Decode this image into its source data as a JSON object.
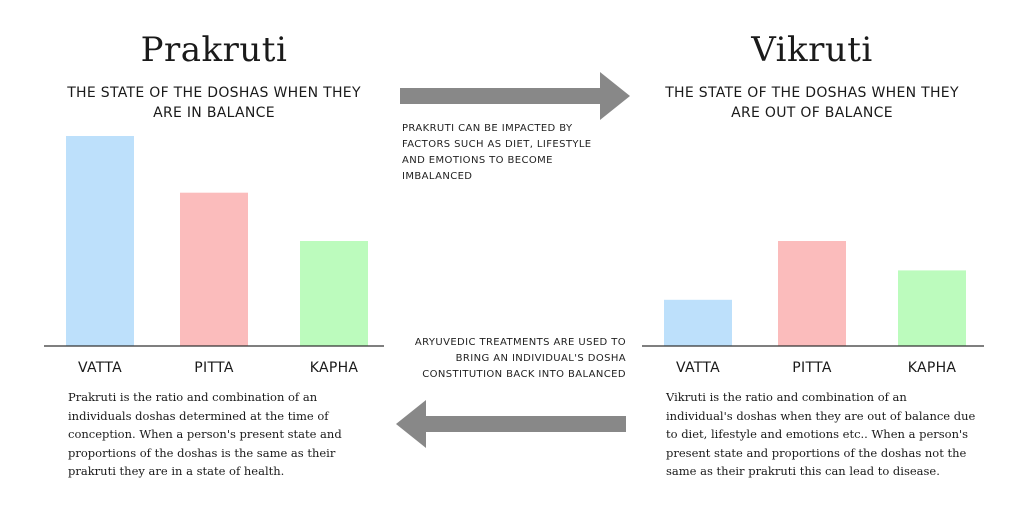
{
  "left": {
    "title": "Prakruti",
    "subtitle": "THE STATE OF THE DOSHAS WHEN THEY ARE IN BALANCE",
    "description": "Prakruti is the ratio and combination of an individuals doshas determined at the time of conception. When a person's present state and proportions of the doshas is the same as their prakruti they are in a state of health."
  },
  "right": {
    "title": "Vikruti",
    "subtitle": "THE STATE OF THE DOSHAS WHEN THEY ARE OUT OF BALANCE",
    "description": "Vikruti is the ratio and combination of an individual's doshas when they are out of balance due to diet, lifestyle and emotions etc.. When a person's present state and proportions of the doshas not the same as their prakruti this can lead to disease."
  },
  "notes": {
    "top": "PRAKRUTI CAN BE IMPACTED BY FACTORS SUCH AS DIET, LIFESTYLE AND EMOTIONS TO BECOME IMBALANCED",
    "bottom": "ARYUVEDIC TREATMENTS ARE USED TO BRING AN INDIVIDUAL'S DOSHA CONSTITUTION BACK INTO BALANCED"
  },
  "colors": {
    "vatta": "#bde0fb",
    "pitta": "#fbbcbc",
    "kapha": "#bcfbbd",
    "arrow": "#888888",
    "axis": "#333333"
  },
  "icons": [
    "arrow-right-icon",
    "arrow-left-icon"
  ],
  "chart_data": [
    {
      "type": "bar",
      "title": "Prakruti",
      "categories": [
        "VATTA",
        "PITTA",
        "KAPHA"
      ],
      "values": [
        100,
        73,
        50
      ],
      "ylim": [
        0,
        100
      ],
      "colors": [
        "#bde0fb",
        "#fbbcbc",
        "#bcfbbd"
      ],
      "grid": false,
      "y_axis_visible": false
    },
    {
      "type": "bar",
      "title": "Vikruti",
      "categories": [
        "VATTA",
        "PITTA",
        "KAPHA"
      ],
      "values": [
        22,
        50,
        36
      ],
      "ylim": [
        0,
        100
      ],
      "colors": [
        "#bde0fb",
        "#fbbcbc",
        "#bcfbbd"
      ],
      "grid": false,
      "y_axis_visible": false
    }
  ]
}
